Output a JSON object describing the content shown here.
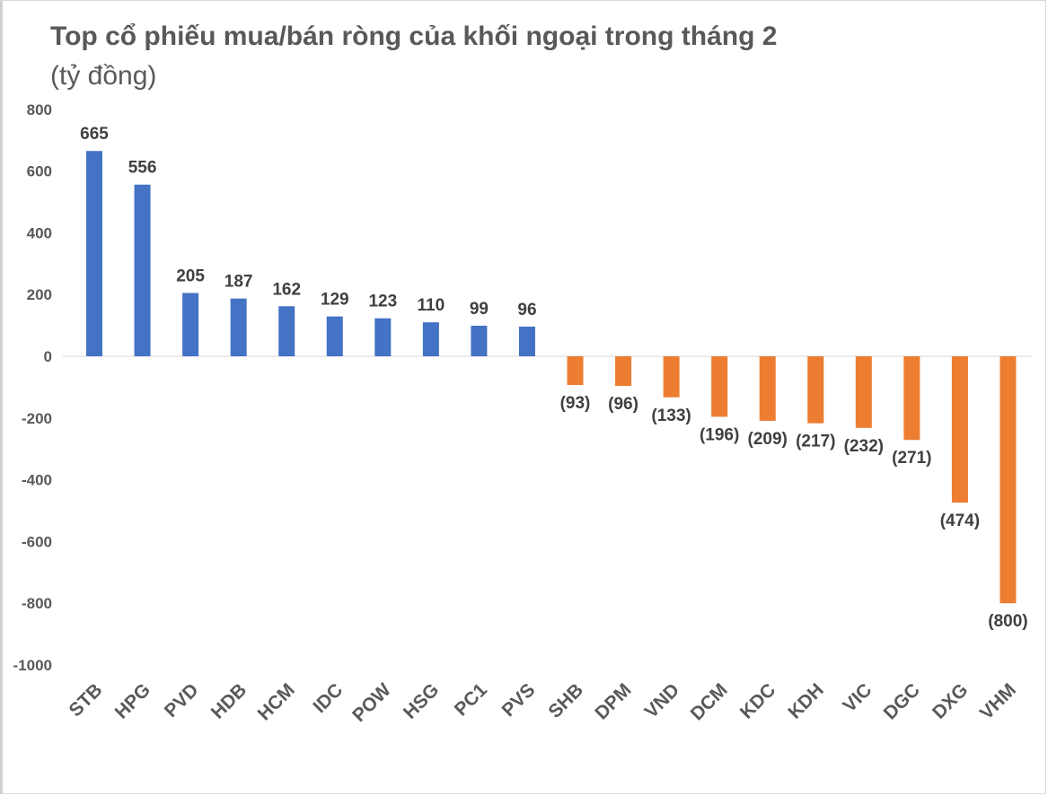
{
  "chart_data": {
    "type": "bar",
    "title": "Top cổ phiếu mua/bán ròng của khối ngoại trong tháng 2",
    "subtitle": "(tỷ đồng)",
    "xlabel": "",
    "ylabel": "",
    "ylim": [
      -1000,
      800
    ],
    "yticks": [
      800,
      600,
      400,
      200,
      0,
      -200,
      -400,
      -600,
      -800,
      -1000
    ],
    "grid": false,
    "categories": [
      "STB",
      "HPG",
      "PVD",
      "HDB",
      "HCM",
      "IDC",
      "POW",
      "HSG",
      "PC1",
      "PVS",
      "SHB",
      "DPM",
      "VND",
      "DCM",
      "KDC",
      "KDH",
      "VIC",
      "DGC",
      "DXG",
      "VHM"
    ],
    "values": [
      665,
      556,
      205,
      187,
      162,
      129,
      123,
      110,
      99,
      96,
      -93,
      -96,
      -133,
      -196,
      -209,
      -217,
      -232,
      -271,
      -474,
      -800
    ],
    "data_labels": [
      "665",
      "556",
      "205",
      "187",
      "162",
      "129",
      "123",
      "110",
      "99",
      "96",
      "(93)",
      "(96)",
      "(133)",
      "(196)",
      "(209)",
      "(217)",
      "(232)",
      "(271)",
      "(474)",
      "(800)"
    ],
    "colors": {
      "positive": "#4472C4",
      "negative": "#ED7D31"
    }
  }
}
